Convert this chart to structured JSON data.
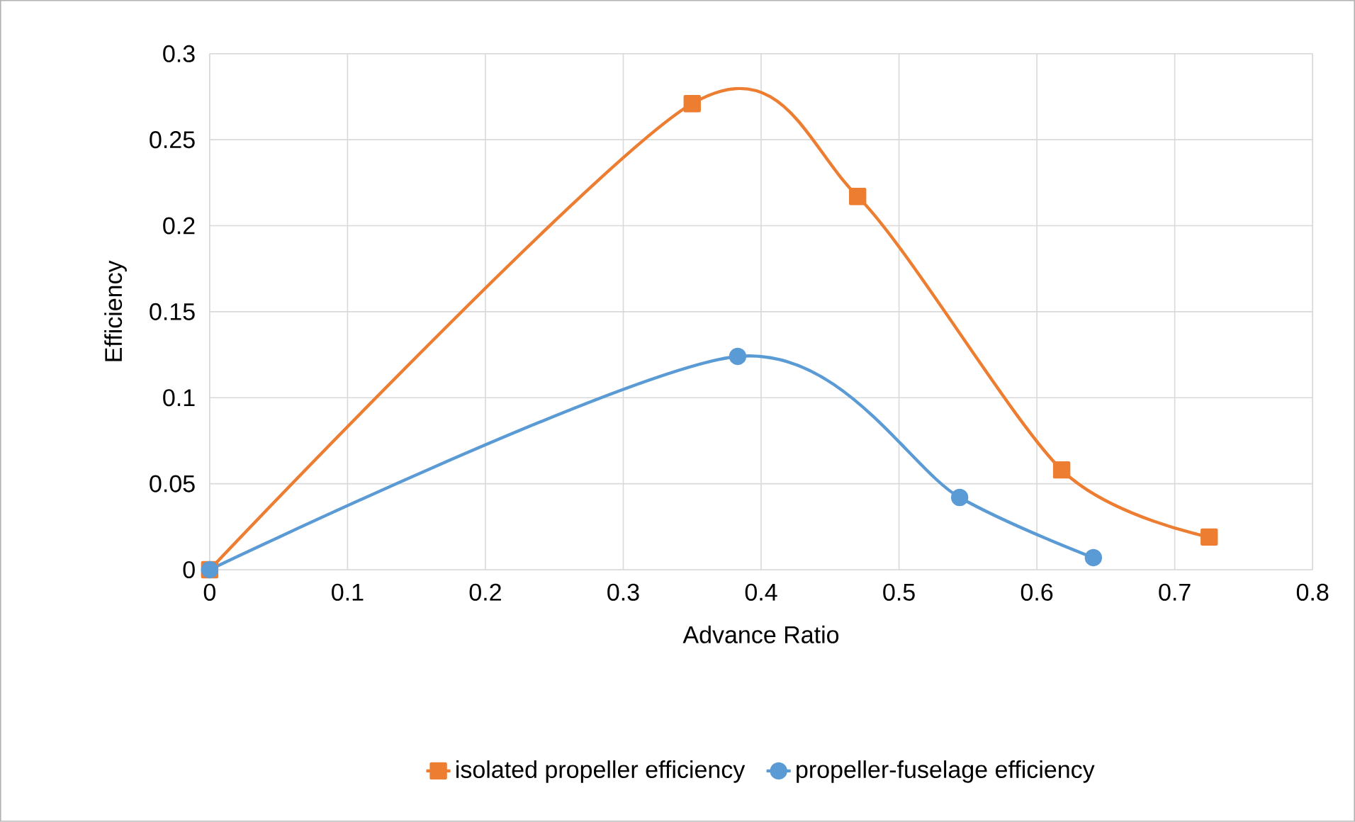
{
  "chart_data": {
    "type": "line",
    "xlabel": "Advance Ratio",
    "ylabel": "Efficiency",
    "xlim": [
      0,
      0.8
    ],
    "xticks": [
      0,
      0.1,
      0.2,
      0.3,
      0.4,
      0.5,
      0.6,
      0.7,
      0.8
    ],
    "ylim": [
      0,
      0.3
    ],
    "yticks": [
      0,
      0.05,
      0.1,
      0.15,
      0.2,
      0.25,
      0.3
    ],
    "grid": true,
    "legend": "bottom",
    "series": [
      {
        "name": "isolated propeller efficiency",
        "color": "#ed7d31",
        "marker": "square",
        "x": [
          0,
          0.35,
          0.47,
          0.618,
          0.725
        ],
        "values": [
          0,
          0.271,
          0.217,
          0.058,
          0.019
        ]
      },
      {
        "name": "propeller-fuselage efficiency",
        "color": "#5b9bd5",
        "marker": "circle",
        "x": [
          0,
          0.383,
          0.544,
          0.641
        ],
        "values": [
          0,
          0.124,
          0.042,
          0.007
        ]
      }
    ]
  }
}
